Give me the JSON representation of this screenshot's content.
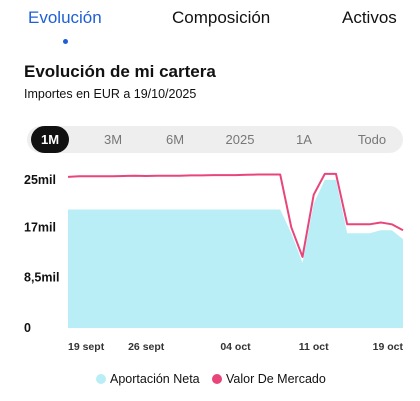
{
  "tabs": [
    {
      "label": "Evolución",
      "active": true
    },
    {
      "label": "Composición",
      "active": false
    },
    {
      "label": "Activos",
      "active": false
    }
  ],
  "header": {
    "title": "Evolución de mi cartera",
    "subtitle": "Importes en EUR a 19/10/2025"
  },
  "ranges": [
    {
      "label": "1M",
      "active": true
    },
    {
      "label": "3M",
      "active": false
    },
    {
      "label": "6M",
      "active": false
    },
    {
      "label": "2025",
      "active": false
    },
    {
      "label": "1A",
      "active": false
    },
    {
      "label": "Todo",
      "active": false
    }
  ],
  "colors": {
    "accent": "#1f5fd6",
    "area": "#b9eef6",
    "line": "#e8467a"
  },
  "chart_data": {
    "type": "area",
    "ylim": [
      0,
      27000
    ],
    "yticks": [
      0,
      8500,
      17000,
      25000
    ],
    "ytick_labels": [
      "0",
      "8,5mil",
      "17mil",
      "25mil"
    ],
    "x": [
      "19 sept",
      "20 sept",
      "21 sept",
      "22 sept",
      "23 sept",
      "24 sept",
      "25 sept",
      "26 sept",
      "27 sept",
      "28 sept",
      "29 sept",
      "30 sept",
      "01 oct",
      "02 oct",
      "03 oct",
      "04 oct",
      "05 oct",
      "06 oct",
      "07 oct",
      "08 oct",
      "09 oct",
      "10 oct",
      "11 oct",
      "12 oct",
      "13 oct",
      "14 oct",
      "15 oct",
      "16 oct",
      "17 oct",
      "18 oct",
      "19 oct"
    ],
    "xtick_labels": [
      "19 sept",
      "26 sept",
      "04 oct",
      "11 oct",
      "19 oct"
    ],
    "xtick_index": [
      0,
      7,
      15,
      22,
      30
    ],
    "series": [
      {
        "name": "Aportación Neta",
        "kind": "area",
        "values": [
          20000,
          20000,
          20000,
          20000,
          20000,
          20000,
          20000,
          20000,
          20000,
          20000,
          20000,
          20000,
          20000,
          20000,
          20000,
          20000,
          20000,
          20000,
          20000,
          20000,
          16000,
          11000,
          21000,
          25000,
          25000,
          16000,
          16000,
          16000,
          16500,
          16500,
          15000
        ]
      },
      {
        "name": "Valor De Mercado",
        "kind": "line",
        "values": [
          25500,
          25600,
          25600,
          25600,
          25600,
          25650,
          25700,
          25650,
          25700,
          25700,
          25700,
          25750,
          25750,
          25800,
          25800,
          25800,
          25850,
          25900,
          25900,
          25900,
          17000,
          12000,
          22500,
          26000,
          26000,
          17500,
          17500,
          17500,
          17800,
          17500,
          16500
        ]
      }
    ],
    "legend": "bottom"
  },
  "legend": [
    {
      "label": "Aportación Neta"
    },
    {
      "label": "Valor De Mercado"
    }
  ]
}
